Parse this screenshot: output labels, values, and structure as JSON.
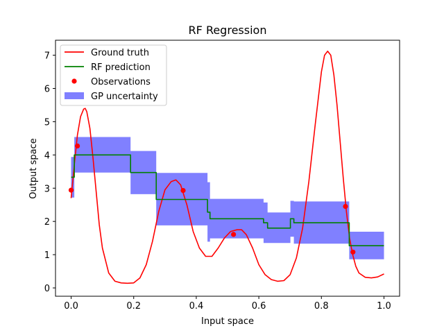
{
  "chart_data": {
    "type": "line",
    "title": "RF Regression",
    "xlabel": "Input space",
    "ylabel": "Output space",
    "xlim": [
      -0.05,
      1.05
    ],
    "ylim": [
      -0.25,
      7.45
    ],
    "xticks": [
      "0.0",
      "0.2",
      "0.4",
      "0.6",
      "0.8",
      "1.0"
    ],
    "xtick_values": [
      0,
      0.2,
      0.4,
      0.6,
      0.8,
      1.0
    ],
    "yticks": [
      "0",
      "1",
      "2",
      "3",
      "4",
      "5",
      "6",
      "7"
    ],
    "ytick_values": [
      0,
      1,
      2,
      3,
      4,
      5,
      6,
      7
    ],
    "grid": false,
    "legend_position": "top-left",
    "legend": [
      {
        "label": "Ground truth",
        "kind": "line",
        "color": "#ff0000"
      },
      {
        "label": "RF prediction",
        "kind": "line",
        "color": "#008000"
      },
      {
        "label": "Observations",
        "kind": "marker",
        "color": "#ff0000"
      },
      {
        "label": "GP uncertainty",
        "kind": "patch",
        "color": "#8080ff"
      }
    ],
    "series": [
      {
        "name": "Ground truth",
        "color": "#ff0000",
        "x": [
          0.0,
          0.01,
          0.02,
          0.03,
          0.04,
          0.045,
          0.05,
          0.06,
          0.07,
          0.08,
          0.09,
          0.1,
          0.12,
          0.14,
          0.16,
          0.18,
          0.2,
          0.22,
          0.24,
          0.26,
          0.28,
          0.3,
          0.32,
          0.335,
          0.35,
          0.37,
          0.39,
          0.41,
          0.43,
          0.45,
          0.47,
          0.49,
          0.51,
          0.53,
          0.545,
          0.56,
          0.58,
          0.6,
          0.62,
          0.64,
          0.66,
          0.68,
          0.7,
          0.72,
          0.74,
          0.76,
          0.78,
          0.8,
          0.81,
          0.82,
          0.83,
          0.84,
          0.85,
          0.86,
          0.87,
          0.88,
          0.89,
          0.9,
          0.91,
          0.92,
          0.94,
          0.96,
          0.98,
          1.0
        ],
        "y": [
          2.7,
          3.7,
          4.6,
          5.15,
          5.38,
          5.4,
          5.3,
          4.8,
          3.9,
          2.9,
          1.9,
          1.2,
          0.45,
          0.2,
          0.15,
          0.14,
          0.15,
          0.3,
          0.7,
          1.4,
          2.3,
          2.95,
          3.2,
          3.25,
          3.1,
          2.5,
          1.7,
          1.2,
          0.95,
          0.95,
          1.2,
          1.5,
          1.7,
          1.75,
          1.75,
          1.6,
          1.2,
          0.7,
          0.4,
          0.25,
          0.2,
          0.22,
          0.4,
          0.9,
          1.8,
          3.2,
          4.9,
          6.5,
          7.0,
          7.12,
          7.0,
          6.4,
          5.5,
          4.4,
          3.3,
          2.3,
          1.5,
          1.0,
          0.65,
          0.45,
          0.32,
          0.3,
          0.33,
          0.42
        ]
      },
      {
        "name": "RF prediction",
        "color": "#008000",
        "x": [
          0.0,
          0.01,
          0.01,
          0.19,
          0.19,
          0.272,
          0.272,
          0.436,
          0.436,
          0.444,
          0.444,
          0.615,
          0.615,
          0.628,
          0.628,
          0.701,
          0.701,
          0.712,
          0.712,
          0.889,
          0.889,
          1.0
        ],
        "y": [
          3.33,
          3.33,
          4.0,
          4.0,
          3.47,
          3.47,
          2.66,
          2.66,
          2.28,
          2.28,
          2.08,
          2.08,
          1.96,
          1.96,
          1.8,
          1.8,
          2.08,
          2.08,
          1.96,
          1.96,
          1.27,
          1.27
        ]
      }
    ],
    "observations": {
      "name": "Observations",
      "color": "#ff0000",
      "x": [
        0.0,
        0.02,
        0.358,
        0.519,
        0.877,
        0.901
      ],
      "y": [
        2.94,
        4.27,
        2.93,
        1.61,
        2.45,
        1.08
      ]
    },
    "uncertainty_band": {
      "name": "GP uncertainty",
      "color": "#8080ff",
      "x": [
        0.0,
        0.01,
        0.01,
        0.19,
        0.19,
        0.272,
        0.272,
        0.436,
        0.436,
        0.444,
        0.444,
        0.615,
        0.615,
        0.628,
        0.628,
        0.701,
        0.701,
        0.712,
        0.712,
        0.889,
        0.889,
        1.0
      ],
      "lower": [
        2.72,
        2.72,
        3.47,
        3.47,
        2.82,
        2.82,
        1.88,
        1.88,
        1.39,
        1.39,
        1.49,
        1.49,
        1.35,
        1.35,
        1.35,
        1.35,
        1.54,
        1.54,
        1.33,
        1.33,
        0.86,
        0.86
      ],
      "upper": [
        3.94,
        3.94,
        4.54,
        4.54,
        4.12,
        4.12,
        3.46,
        3.46,
        3.18,
        3.18,
        2.68,
        2.68,
        2.57,
        2.57,
        2.27,
        2.27,
        2.62,
        2.62,
        2.6,
        2.6,
        1.69,
        1.69
      ]
    }
  }
}
